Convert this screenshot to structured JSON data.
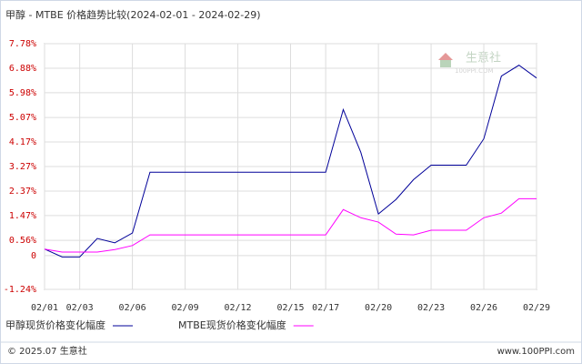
{
  "chart_data": {
    "type": "line",
    "title": "甲醇 - MTBE 价格趋势比较(2024-02-01 - 2024-02-29)",
    "categories": [
      "02/01",
      null,
      "02/03",
      null,
      null,
      "02/06",
      null,
      null,
      "02/09",
      null,
      null,
      "02/12",
      null,
      null,
      "02/15",
      null,
      "02/17",
      null,
      null,
      "02/20",
      null,
      null,
      "02/23",
      null,
      null,
      "02/26",
      null,
      null,
      "02/29"
    ],
    "series": [
      {
        "name": "甲醇现货价格变化幅度",
        "color": "#000099",
        "values": [
          0.24,
          -0.05,
          -0.05,
          0.63,
          0.47,
          0.83,
          3.06,
          3.06,
          3.06,
          3.06,
          3.06,
          3.06,
          3.06,
          3.06,
          3.06,
          3.06,
          3.06,
          5.36,
          3.79,
          1.53,
          2.06,
          2.79,
          3.32,
          3.32,
          3.32,
          4.29,
          6.59,
          6.99,
          6.52
        ]
      },
      {
        "name": "MTBE现货价格变化幅度",
        "color": "#ff00ff",
        "values": [
          0.24,
          0.13,
          0.13,
          0.13,
          0.22,
          0.37,
          0.76,
          0.76,
          0.76,
          0.76,
          0.76,
          0.76,
          0.76,
          0.76,
          0.76,
          0.76,
          0.76,
          1.69,
          1.39,
          1.23,
          0.79,
          0.76,
          0.93,
          0.93,
          0.93,
          1.39,
          1.56,
          2.09,
          2.09
        ]
      }
    ],
    "ylim": [
      -1.24,
      7.78
    ],
    "yticks": [
      {
        "value": -1.24,
        "label": "-1.24%"
      },
      0,
      {
        "value": 0.56,
        "label": "0.56%"
      },
      {
        "value": 1.47,
        "label": "1.47%"
      },
      {
        "value": 2.37,
        "label": "2.37%"
      },
      {
        "value": 3.27,
        "label": "3.27%"
      },
      {
        "value": 4.17,
        "label": "4.17%"
      },
      {
        "value": 5.07,
        "label": "5.07%"
      },
      {
        "value": 5.98,
        "label": "5.98%"
      },
      {
        "value": 6.88,
        "label": "6.88%"
      },
      {
        "value": 7.78,
        "label": "7.78%"
      }
    ],
    "grid": true
  },
  "logo": {
    "name": "生意社",
    "url": "100PPI.COM"
  },
  "footer": {
    "copyright": "© 2025.07 生意社",
    "site": "www.100PPI.com"
  }
}
